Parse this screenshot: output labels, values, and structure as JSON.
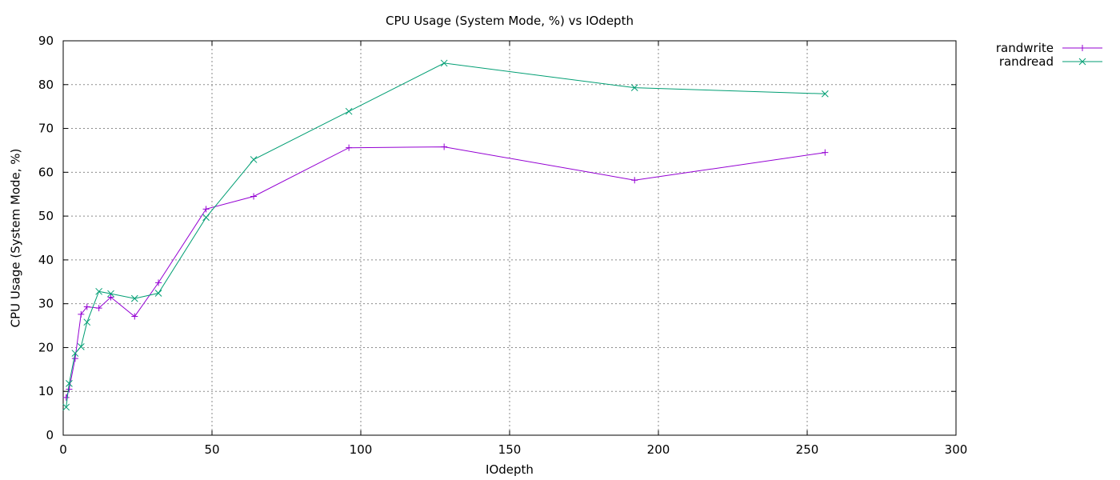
{
  "chart_data": {
    "type": "line",
    "title": "CPU Usage (System Mode, %) vs IOdepth",
    "xlabel": "IOdepth",
    "ylabel": "CPU Usage (System Mode, %)",
    "xlim": [
      0,
      300
    ],
    "ylim": [
      0,
      90
    ],
    "x_ticks": [
      0,
      50,
      100,
      150,
      200,
      250,
      300
    ],
    "y_ticks": [
      0,
      10,
      20,
      30,
      40,
      50,
      60,
      70,
      80,
      90
    ],
    "grid": true,
    "legend_position": "outside-top-right",
    "series": [
      {
        "name": "randwrite",
        "color": "#9400d3",
        "marker": "plus",
        "x": [
          1,
          2,
          4,
          6,
          8,
          12,
          16,
          24,
          32,
          48,
          64,
          96,
          128,
          192,
          256
        ],
        "y": [
          8.6,
          10.5,
          17.5,
          27.6,
          29.3,
          29.0,
          31.5,
          27.1,
          34.8,
          51.6,
          54.5,
          65.6,
          65.8,
          58.2,
          64.5
        ]
      },
      {
        "name": "randread",
        "color": "#009e73",
        "marker": "cross",
        "x": [
          1,
          2,
          4,
          6,
          8,
          12,
          16,
          24,
          32,
          48,
          64,
          96,
          128,
          192,
          256
        ],
        "y": [
          6.4,
          11.8,
          18.7,
          20.2,
          25.8,
          32.8,
          32.3,
          31.2,
          32.4,
          49.7,
          62.9,
          73.9,
          84.9,
          79.3,
          77.9
        ]
      }
    ]
  }
}
